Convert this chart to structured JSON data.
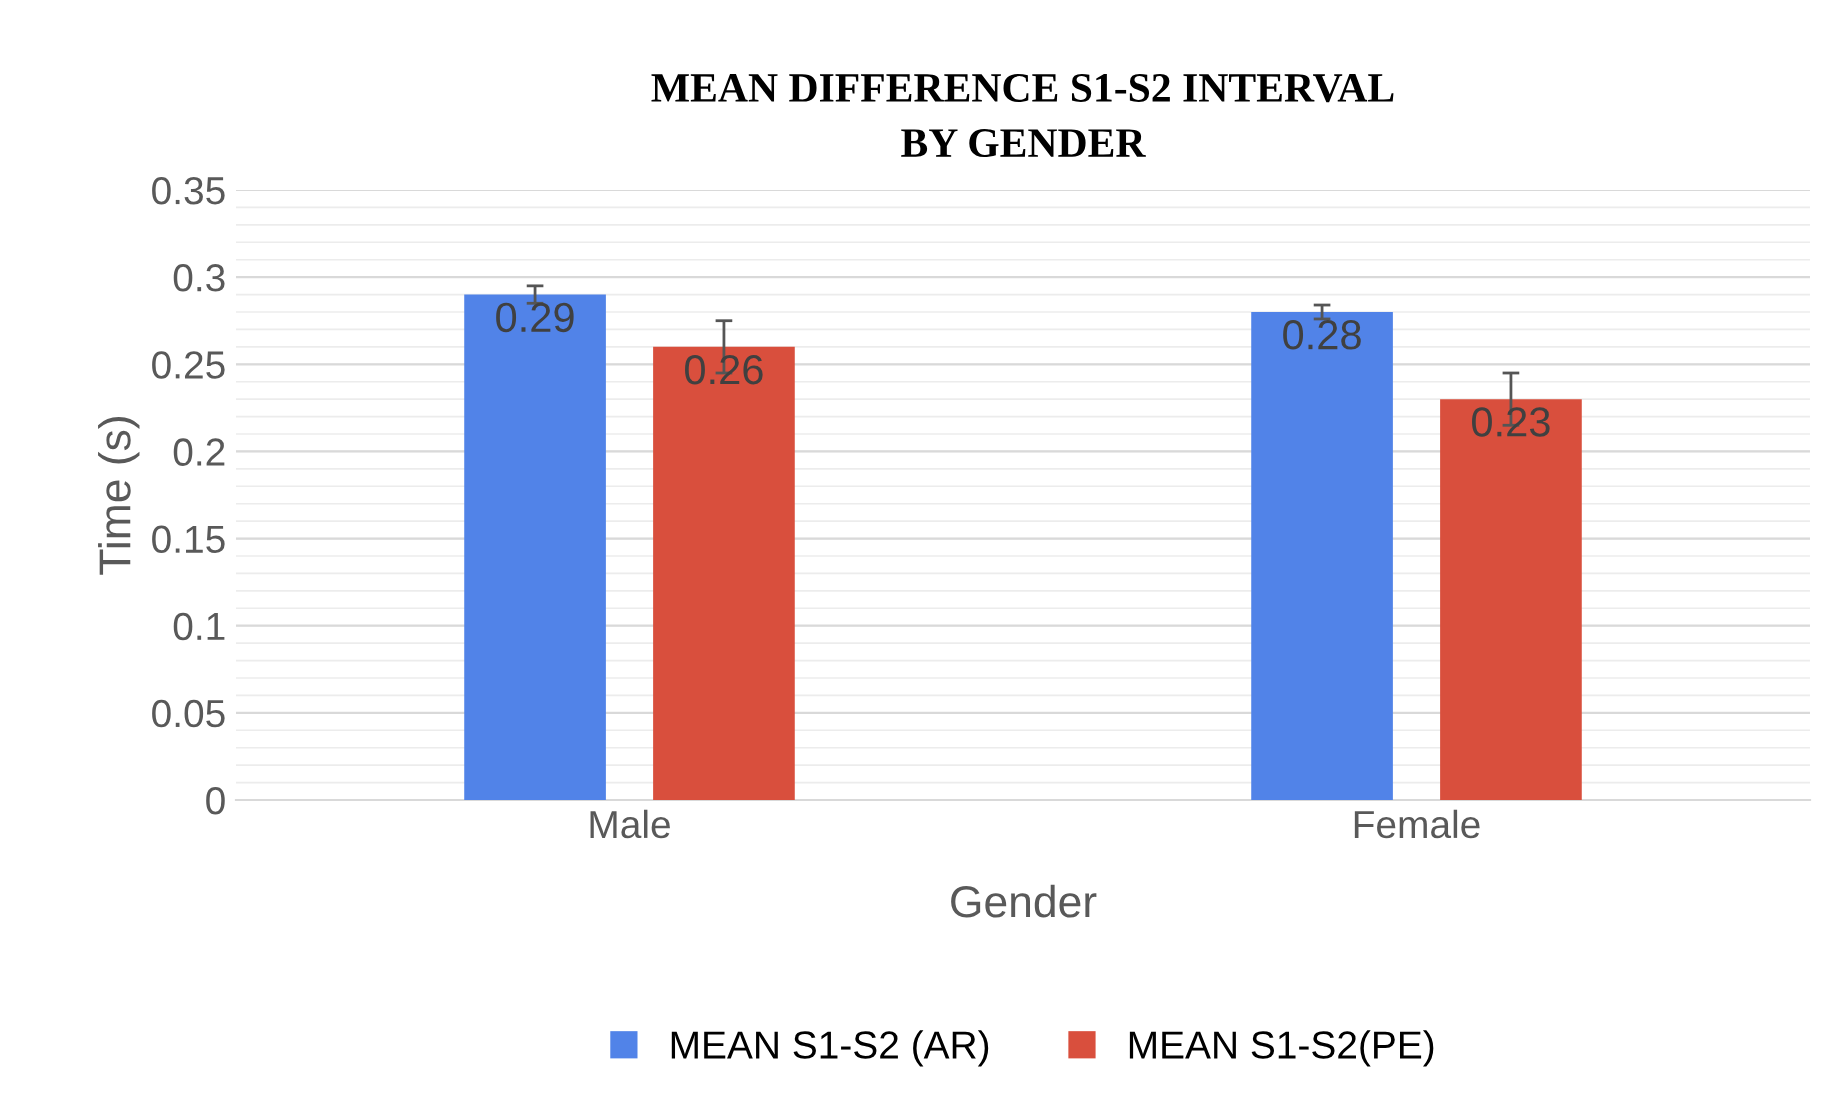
{
  "chart_data": {
    "type": "bar",
    "title": "MEAN DIFFERENCE S1-S2 INTERVAL\nBY GENDER",
    "xlabel": "Gender",
    "ylabel": "Time (s)",
    "categories": [
      "Male",
      "Female"
    ],
    "series": [
      {
        "name": "MEAN S1-S2 (AR)",
        "color": "#5183e8",
        "values": [
          0.29,
          0.28
        ],
        "errors": [
          0.005,
          0.004
        ]
      },
      {
        "name": "MEAN S1-S2(PE)",
        "color": "#d94f3d",
        "values": [
          0.26,
          0.23
        ],
        "errors": [
          0.015,
          0.015
        ]
      }
    ],
    "ylim": [
      0,
      0.35
    ],
    "yticks": [
      0,
      0.05,
      0.1,
      0.15,
      0.2,
      0.25,
      0.3,
      0.35
    ],
    "grid": "y",
    "legend": "bottom",
    "data_labels": true
  }
}
